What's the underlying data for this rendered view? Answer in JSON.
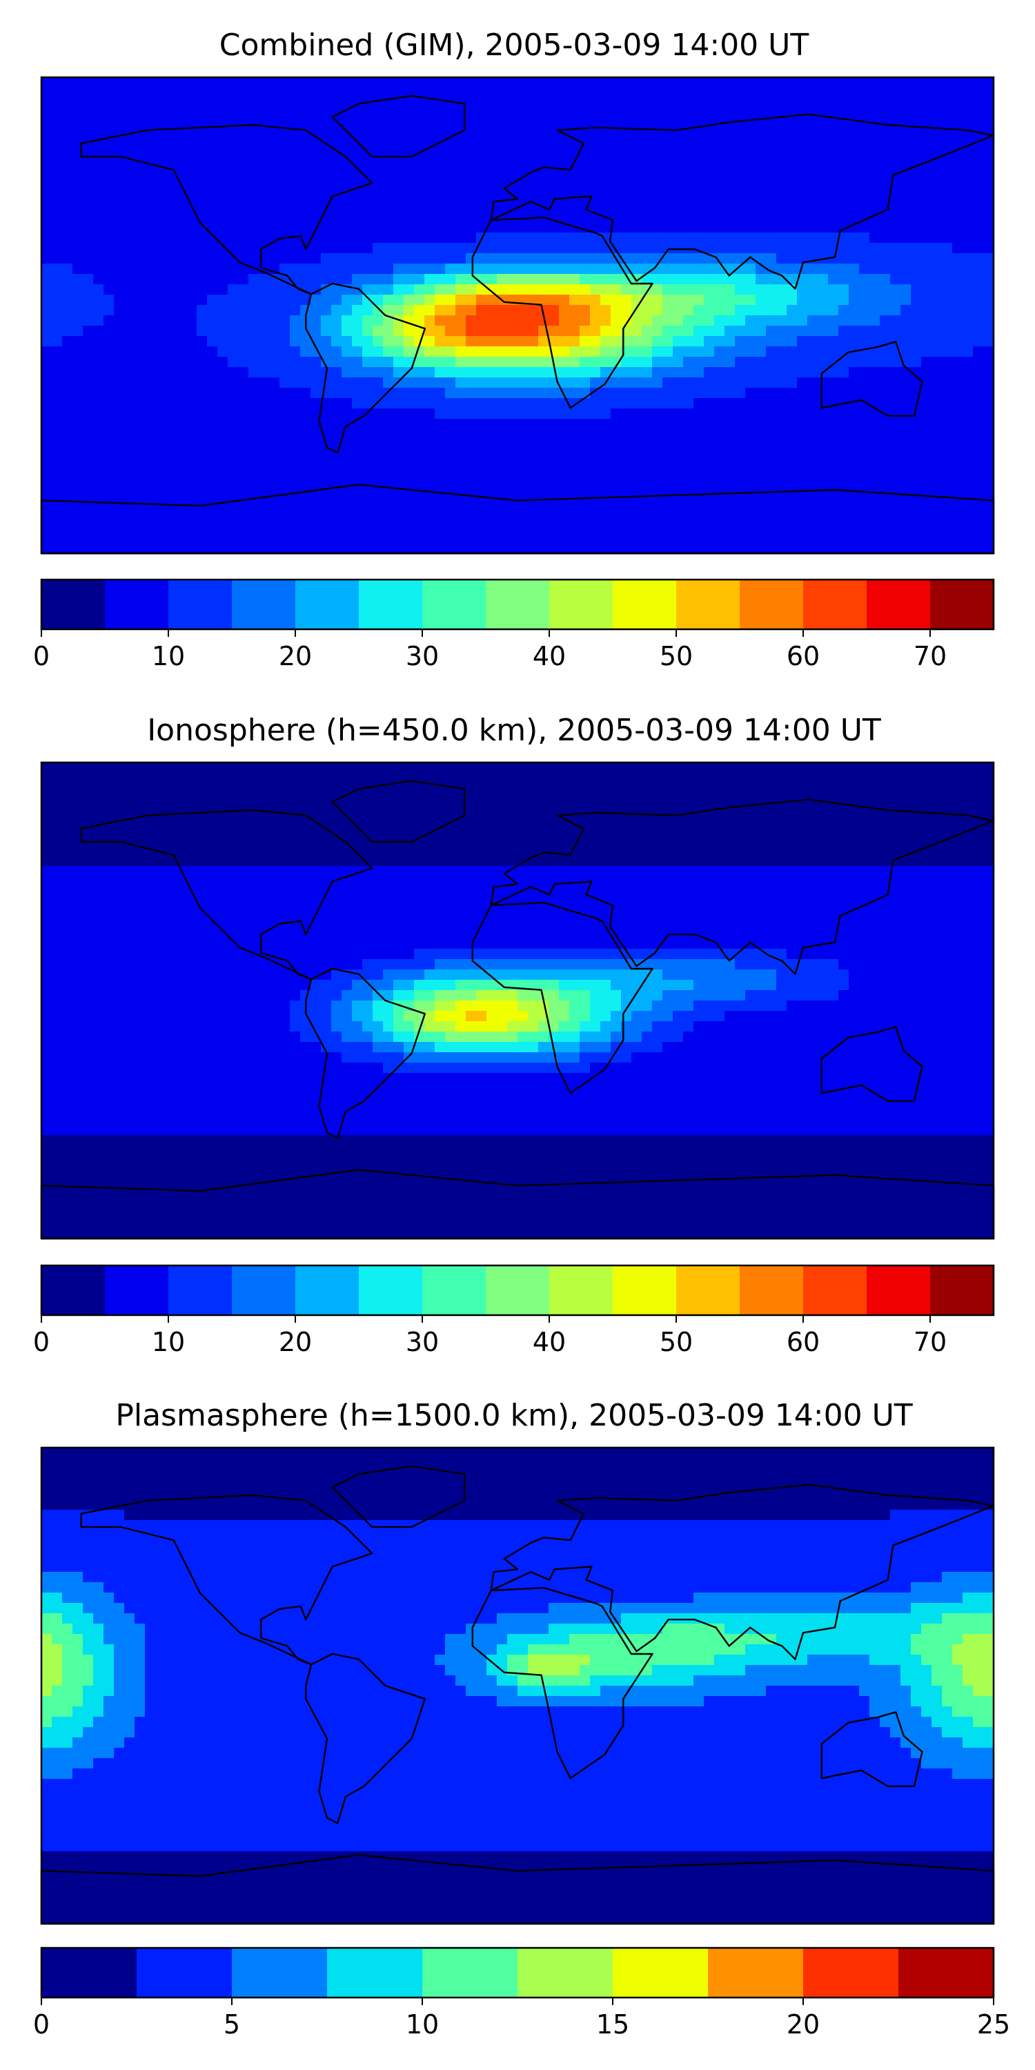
{
  "chart_data": [
    {
      "type": "heatmap",
      "title": "Combined (GIM), 2005-03-09 14:00 UT",
      "colorbar": {
        "min": 0,
        "max": 75,
        "ticks": [
          0,
          10,
          20,
          30,
          40,
          50,
          60,
          70
        ],
        "tick_labels": [
          "0",
          "10",
          "20",
          "30",
          "40",
          "50",
          "60",
          "70"
        ],
        "levels": [
          0,
          5,
          10,
          15,
          20,
          25,
          30,
          35,
          40,
          45,
          50,
          55,
          60,
          65,
          70,
          75
        ],
        "colors": [
          "#00008f",
          "#0000f0",
          "#0030ff",
          "#0070ff",
          "#00b0ff",
          "#10f0f0",
          "#40ffb0",
          "#80ff80",
          "#b8ff40",
          "#f0ff00",
          "#ffc000",
          "#ff8000",
          "#ff4000",
          "#f00000",
          "#9a0000"
        ]
      },
      "features": [
        {
          "lon": 1,
          "lat": -5,
          "slon": 60,
          "slat": 18,
          "amp": 48
        },
        {
          "lon": 0,
          "lat": 8,
          "slon": 40,
          "slat": 9,
          "amp": 14
        },
        {
          "lon": -30,
          "lat": -5,
          "slon": 30,
          "slat": 10,
          "amp": 8
        },
        {
          "lon": 80,
          "lat": 8,
          "slon": 55,
          "slat": 12,
          "amp": 14
        },
        {
          "lon": 110,
          "lat": 5,
          "slon": 80,
          "slat": 22,
          "amp": 4
        }
      ],
      "base_value": 9
    },
    {
      "type": "heatmap",
      "title": "Ionosphere  (h=450.0 km), 2005-03-09 14:00 UT",
      "colorbar": {
        "min": 0,
        "max": 75,
        "ticks": [
          0,
          10,
          20,
          30,
          40,
          50,
          60,
          70
        ],
        "tick_labels": [
          "0",
          "10",
          "20",
          "30",
          "40",
          "50",
          "60",
          "70"
        ],
        "levels": [
          0,
          5,
          10,
          15,
          20,
          25,
          30,
          35,
          40,
          45,
          50,
          55,
          60,
          65,
          70,
          75
        ],
        "colors": [
          "#00008f",
          "#0000f0",
          "#0030ff",
          "#0070ff",
          "#00b0ff",
          "#10f0f0",
          "#40ffb0",
          "#80ff80",
          "#b8ff40",
          "#f0ff00",
          "#ffc000",
          "#ff8000",
          "#ff4000",
          "#f00000",
          "#9a0000"
        ]
      },
      "features": [
        {
          "lon": -10,
          "lat": -5,
          "slon": 50,
          "slat": 16,
          "amp": 40
        },
        {
          "lon": 70,
          "lat": 8,
          "slon": 55,
          "slat": 11,
          "amp": 12
        },
        {
          "lon": -25,
          "lat": -8,
          "slon": 22,
          "slat": 7,
          "amp": 6
        }
      ],
      "base_value": 6
    },
    {
      "type": "heatmap",
      "title": "Plasmasphere (h=1500.0 km), 2005-03-09 14:00 UT",
      "colorbar": {
        "min": 0,
        "max": 25,
        "ticks": [
          0,
          5,
          10,
          15,
          20,
          25
        ],
        "tick_labels": [
          "0",
          "5",
          "10",
          "15",
          "20",
          "25"
        ],
        "levels": [
          0,
          2.5,
          5,
          7.5,
          10,
          12.5,
          15,
          17.5,
          20,
          22.5,
          25
        ],
        "colors": [
          "#00008f",
          "#0020ff",
          "#0080ff",
          "#00e0f0",
          "#50ffa0",
          "#a8ff50",
          "#f0ff00",
          "#ff9000",
          "#ff3000",
          "#b00000"
        ]
      },
      "features": [
        {
          "lon": 40,
          "lat": 12,
          "slon": 50,
          "slat": 14,
          "amp": 7
        },
        {
          "lon": 10,
          "lat": 5,
          "slon": 18,
          "slat": 9,
          "amp": 6
        },
        {
          "lon": 110,
          "lat": 20,
          "slon": 60,
          "slat": 12,
          "amp": 5
        },
        {
          "lon": -175,
          "lat": 5,
          "slon": 25,
          "slat": 30,
          "amp": 5
        },
        {
          "lon": 170,
          "lat": 5,
          "slon": 30,
          "slat": 30,
          "amp": 5
        }
      ],
      "base_value": 4
    }
  ],
  "continents": [
    [
      [
        -165,
        65
      ],
      [
        -140,
        70
      ],
      [
        -100,
        72
      ],
      [
        -80,
        70
      ],
      [
        -65,
        60
      ],
      [
        -55,
        50
      ],
      [
        -70,
        45
      ],
      [
        -75,
        35
      ],
      [
        -80,
        25
      ],
      [
        -82,
        30
      ],
      [
        -90,
        29
      ],
      [
        -97,
        25
      ],
      [
        -97,
        18
      ],
      [
        -87,
        15
      ],
      [
        -83,
        10
      ],
      [
        -78,
        8
      ],
      [
        -95,
        16
      ],
      [
        -105,
        20
      ],
      [
        -115,
        30
      ],
      [
        -120,
        35
      ],
      [
        -125,
        45
      ],
      [
        -130,
        55
      ],
      [
        -150,
        60
      ],
      [
        -165,
        60
      ]
    ],
    [
      [
        -78,
        8
      ],
      [
        -70,
        12
      ],
      [
        -60,
        10
      ],
      [
        -50,
        0
      ],
      [
        -35,
        -5
      ],
      [
        -40,
        -20
      ],
      [
        -48,
        -28
      ],
      [
        -58,
        -38
      ],
      [
        -65,
        -42
      ],
      [
        -68,
        -52
      ],
      [
        -72,
        -50
      ],
      [
        -75,
        -40
      ],
      [
        -72,
        -20
      ],
      [
        -80,
        -5
      ],
      [
        -80,
        0
      ]
    ],
    [
      [
        -10,
        36
      ],
      [
        10,
        37
      ],
      [
        30,
        31
      ],
      [
        32,
        30
      ],
      [
        43,
        12
      ],
      [
        51,
        12
      ],
      [
        40,
        -5
      ],
      [
        40,
        -15
      ],
      [
        33,
        -26
      ],
      [
        20,
        -35
      ],
      [
        15,
        -25
      ],
      [
        12,
        -10
      ],
      [
        9,
        4
      ],
      [
        -5,
        5
      ],
      [
        -17,
        15
      ],
      [
        -17,
        22
      ]
    ],
    [
      [
        -10,
        36
      ],
      [
        -9,
        43
      ],
      [
        0,
        44
      ],
      [
        -5,
        48
      ],
      [
        5,
        54
      ],
      [
        10,
        56
      ],
      [
        20,
        55
      ],
      [
        25,
        65
      ],
      [
        15,
        70
      ],
      [
        30,
        71
      ],
      [
        60,
        70
      ],
      [
        80,
        73
      ],
      [
        110,
        76
      ],
      [
        140,
        72
      ],
      [
        170,
        70
      ],
      [
        180,
        68
      ],
      [
        160,
        60
      ],
      [
        142,
        53
      ],
      [
        140,
        40
      ],
      [
        122,
        32
      ],
      [
        120,
        22
      ],
      [
        108,
        20
      ],
      [
        105,
        10
      ],
      [
        100,
        15
      ],
      [
        95,
        17
      ],
      [
        88,
        22
      ],
      [
        80,
        15
      ],
      [
        75,
        22
      ],
      [
        67,
        25
      ],
      [
        57,
        25
      ],
      [
        52,
        18
      ],
      [
        45,
        13
      ],
      [
        35,
        28
      ],
      [
        36,
        36
      ],
      [
        26,
        40
      ],
      [
        28,
        45
      ],
      [
        14,
        44
      ],
      [
        12,
        40
      ],
      [
        5,
        43
      ]
    ],
    [
      [
        -55,
        60
      ],
      [
        -40,
        60
      ],
      [
        -20,
        70
      ],
      [
        -20,
        80
      ],
      [
        -40,
        83
      ],
      [
        -60,
        80
      ],
      [
        -70,
        75
      ]
    ],
    [
      [
        115,
        -22
      ],
      [
        125,
        -14
      ],
      [
        136,
        -12
      ],
      [
        143,
        -10
      ],
      [
        146,
        -19
      ],
      [
        153,
        -25
      ],
      [
        150,
        -38
      ],
      [
        140,
        -38
      ],
      [
        130,
        -32
      ],
      [
        115,
        -35
      ]
    ],
    [
      [
        -180,
        -70
      ],
      [
        -120,
        -72
      ],
      [
        -60,
        -64
      ],
      [
        0,
        -70
      ],
      [
        60,
        -68
      ],
      [
        120,
        -66
      ],
      [
        180,
        -70
      ],
      [
        180,
        -90
      ],
      [
        -180,
        -90
      ]
    ]
  ]
}
